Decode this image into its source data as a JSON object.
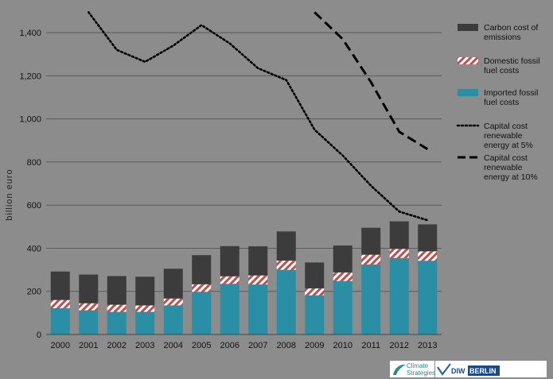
{
  "chart_data": {
    "type": "bar",
    "title": "",
    "xlabel": "",
    "ylabel": "billion euro",
    "ylim": [
      0,
      1500
    ],
    "yticks": [
      0,
      200,
      400,
      600,
      800,
      1000,
      1200,
      1400
    ],
    "ytick_labels": [
      "0",
      "200",
      "400",
      "600",
      "800",
      "1,000",
      "1,200",
      "1,400"
    ],
    "grid": true,
    "legend": "right",
    "categories": [
      "2000",
      "2001",
      "2002",
      "2003",
      "2004",
      "2005",
      "2006",
      "2007",
      "2008",
      "2009",
      "2010",
      "2011",
      "2012",
      "2013"
    ],
    "stacked_series": [
      {
        "name": "Imported fossil fuel costs",
        "color": "#2a8ea5",
        "values": [
          122,
          112,
          105,
          105,
          135,
          198,
          235,
          232,
          300,
          182,
          248,
          325,
          355,
          342
        ]
      },
      {
        "name": "Domestic fossil fuel costs",
        "color": "#c0504d",
        "pattern": "diagonal-stripes",
        "values": [
          38,
          33,
          33,
          30,
          32,
          35,
          35,
          42,
          43,
          32,
          40,
          45,
          42,
          44
        ]
      },
      {
        "name": "Carbon cost of emissions",
        "color": "#3c3c3c",
        "values": [
          132,
          133,
          133,
          133,
          138,
          135,
          140,
          135,
          135,
          120,
          125,
          125,
          128,
          125
        ]
      }
    ],
    "line_series": [
      {
        "name": "Capital cost renewable energy at 5%",
        "style": "dotted",
        "color": "#000000",
        "x": [
          "2001",
          "2002",
          "2003",
          "2004",
          "2005",
          "2006",
          "2007",
          "2008",
          "2009",
          "2010",
          "2011",
          "2012",
          "2013"
        ],
        "values": [
          1495,
          1320,
          1265,
          1340,
          1435,
          1350,
          1235,
          1180,
          950,
          830,
          690,
          570,
          530
        ]
      },
      {
        "name": "Capital cost renewable energy at 10%",
        "style": "dashed",
        "color": "#000000",
        "x": [
          "2009",
          "2010",
          "2011",
          "2012",
          "2013"
        ],
        "values": [
          1495,
          1370,
          1170,
          940,
          860
        ]
      }
    ],
    "legend_entries": [
      {
        "label_lines": [
          "Carbon cost of",
          "emissions"
        ],
        "kind": "box",
        "series": "Carbon cost of emissions"
      },
      {
        "label_lines": [
          "Domestic fossil",
          "fuel costs"
        ],
        "kind": "hatch",
        "series": "Domestic fossil fuel costs"
      },
      {
        "label_lines": [
          "Imported fossil",
          "fuel costs"
        ],
        "kind": "box-teal",
        "series": "Imported fossil fuel costs"
      },
      {
        "label_lines": [
          "Capital cost",
          "renewable",
          "energy at 5%"
        ],
        "kind": "dotted",
        "series": "Capital cost renewable energy at 5%"
      },
      {
        "label_lines": [
          "Capital cost",
          "renewable",
          "energy at 10%"
        ],
        "kind": "dashed",
        "series": "Capital cost renewable energy at 10%"
      }
    ]
  },
  "logos": {
    "climate_line1": "Climate",
    "climate_line2": "Strategies",
    "diw_prefix": "DIW",
    "diw_suffix": "BERLIN"
  },
  "colors": {
    "plot_background": "#8c8c8c",
    "gridline": "#5a5a5a",
    "carbon": "#3c3c3c",
    "imported": "#2a8ea5",
    "domestic_stripe": "#c0504d"
  }
}
